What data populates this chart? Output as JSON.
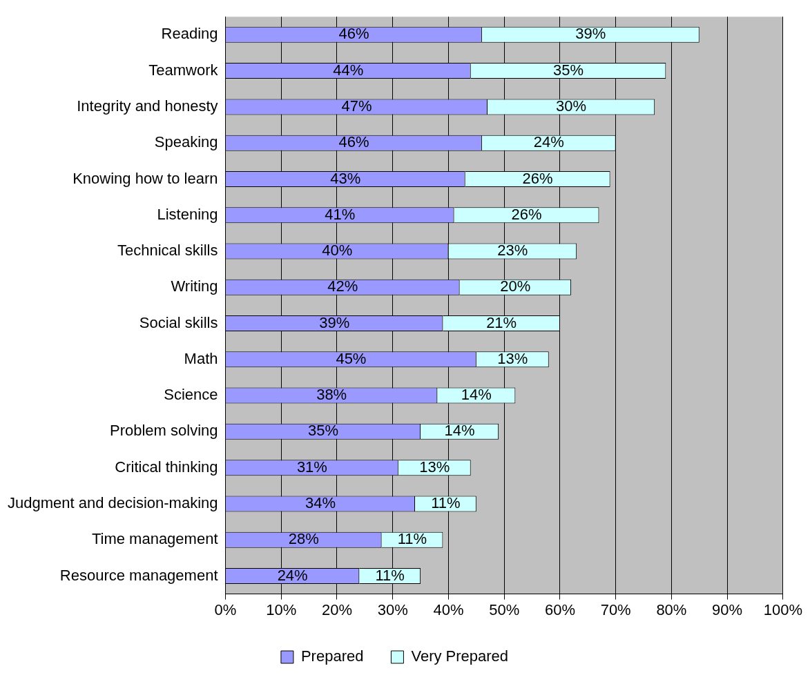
{
  "chart_data": {
    "type": "bar",
    "orientation": "horizontal",
    "stacked": true,
    "categories": [
      "Reading",
      "Teamwork",
      "Integrity and honesty",
      "Speaking",
      "Knowing how to learn",
      "Listening",
      "Technical skills",
      "Writing",
      "Social skills",
      "Math",
      "Science",
      "Problem solving",
      "Critical thinking",
      "Judgment and decision-making",
      "Time management",
      "Resource management"
    ],
    "series": [
      {
        "name": "Prepared",
        "color": "#9999ff",
        "values": [
          46,
          44,
          47,
          46,
          43,
          41,
          40,
          42,
          39,
          45,
          38,
          35,
          31,
          34,
          28,
          24
        ],
        "value_labels": [
          "46%",
          "44%",
          "47%",
          "46%",
          "43%",
          "41%",
          "40%",
          "42%",
          "39%",
          "45%",
          "38%",
          "35%",
          "31%",
          "34%",
          "28%",
          "24%"
        ]
      },
      {
        "name": "Very Prepared",
        "color": "#ccffff",
        "values": [
          39,
          35,
          30,
          24,
          26,
          26,
          23,
          20,
          21,
          13,
          14,
          14,
          13,
          11,
          11,
          11
        ],
        "value_labels": [
          "39%",
          "35%",
          "30%",
          "24%",
          "26%",
          "26%",
          "23%",
          "20%",
          "21%",
          "13%",
          "14%",
          "14%",
          "13%",
          "11%",
          "11%",
          "11%"
        ]
      }
    ],
    "xlim": [
      0,
      100
    ],
    "xticks": [
      {
        "value": 0,
        "label": "0%"
      },
      {
        "value": 10,
        "label": "10%"
      },
      {
        "value": 20,
        "label": "20%"
      },
      {
        "value": 30,
        "label": "30%"
      },
      {
        "value": 40,
        "label": "40%"
      },
      {
        "value": 50,
        "label": "50%"
      },
      {
        "value": 60,
        "label": "60%"
      },
      {
        "value": 70,
        "label": "70%"
      },
      {
        "value": 80,
        "label": "80%"
      },
      {
        "value": 90,
        "label": "90%"
      },
      {
        "value": 100,
        "label": "100%"
      }
    ],
    "grid": "x",
    "legend": "bottom"
  }
}
